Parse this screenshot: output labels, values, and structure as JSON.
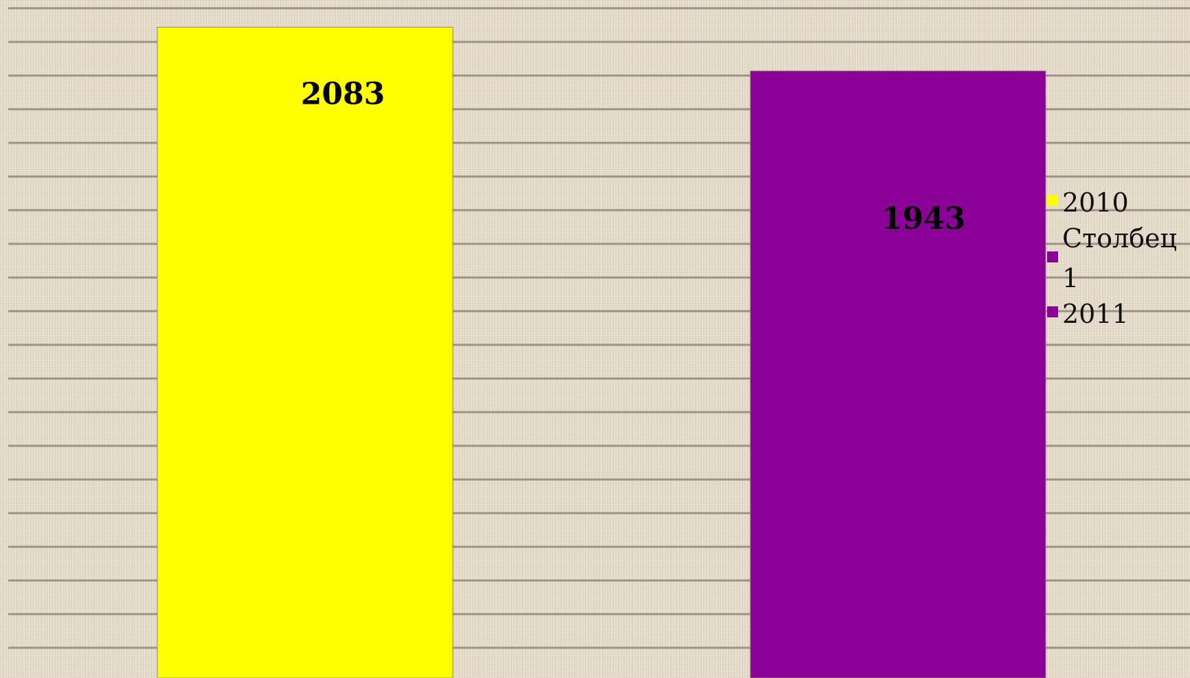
{
  "chart_data": {
    "type": "bar",
    "title": "",
    "xlabel": "",
    "ylabel": "",
    "grid": true,
    "legend_placement": "right",
    "categories": [
      "",
      ""
    ],
    "series": [
      {
        "name": "2010",
        "color": "#ffff00",
        "values": [
          2083,
          null
        ]
      },
      {
        "name": "Столбец1",
        "color": "#8b0096",
        "values": [
          null,
          null
        ]
      },
      {
        "name": "2011",
        "color": "#8b0096",
        "values": [
          null,
          1943
        ]
      }
    ],
    "bars": [
      {
        "series": "2010",
        "value": 2083,
        "label": "2083",
        "color": "#ffff00"
      },
      {
        "series": "2011",
        "value": 1943,
        "label": "1943",
        "color": "#8b0096"
      }
    ],
    "legend": [
      {
        "label_lines": [
          "2010"
        ],
        "color": "#ffff00"
      },
      {
        "label_lines": [
          "Столбец",
          "1"
        ],
        "color": "#8b0096"
      },
      {
        "label_lines": [
          "2011"
        ],
        "color": "#8b0096"
      }
    ],
    "ylim": [
      0,
      2170
    ]
  },
  "colors": {
    "background": "#e3d9c6",
    "gridline": "#8f877b"
  }
}
